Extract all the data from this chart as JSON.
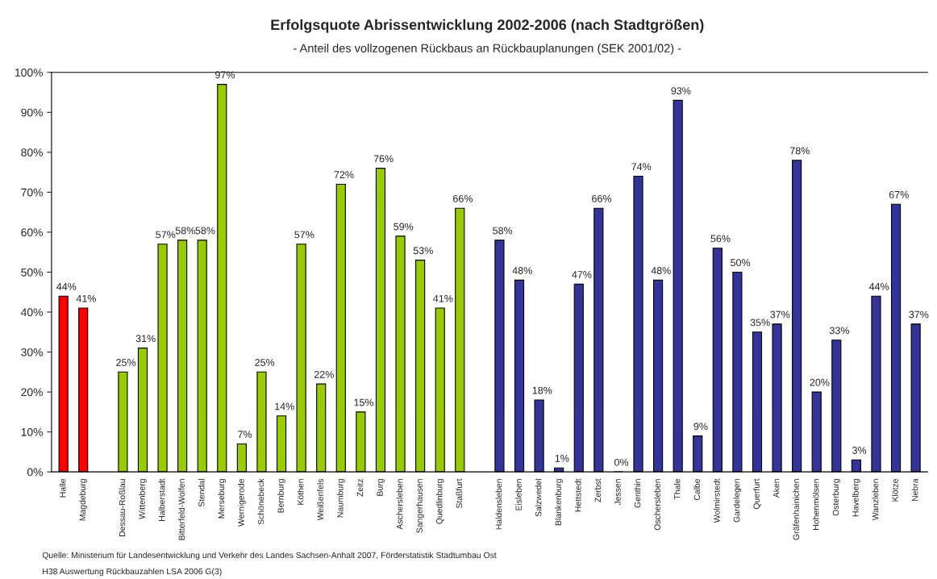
{
  "chart_data": {
    "type": "bar",
    "title": "Erfolgsquote Abrissentwicklung 2002-2006 (nach Stadtgrößen)",
    "subtitle": "- Anteil des vollzogenen Rückbaus an Rückbauplanungen (SEK 2001/02) -",
    "categories": [
      "Halle",
      "Magdeburg",
      null,
      "Dessau-Roßlau",
      "Wittenberg",
      "Halberstadt",
      "Bitterfeld-Wolfen",
      "Stendal",
      "Merseburg",
      "Wernigerode",
      "Schönebeck",
      "Bernburg",
      "Köthen",
      "Weißenfels",
      "Naumburg",
      "Zeitz",
      "Burg",
      "Aschersleben",
      "Sangerhausen",
      "Quedlinburg",
      "Staßfurt",
      null,
      "Haldensleben",
      "Eisleben",
      "Salzwedel",
      "Blankenburg",
      "Hettstedt",
      "Zerbst",
      "Jessen",
      "Genthin",
      "Oschersleben",
      "Thale",
      "Calbe",
      "Wolmirstedt",
      "Gardelegen",
      "Querfurt",
      "Aken",
      "Gräfenhainichen",
      "Hohenmölsen",
      "Osterburg",
      "Havelberg",
      "Wanzleben",
      "Klötze",
      "Nebra"
    ],
    "series": [
      {
        "color": "#ff0000",
        "values": [
          44,
          41,
          null,
          null,
          null,
          null,
          null,
          null,
          null,
          null,
          null,
          null,
          null,
          null,
          null,
          null,
          null,
          null,
          null,
          null,
          null,
          null,
          null,
          null,
          null,
          null,
          null,
          null,
          null,
          null,
          null,
          null,
          null,
          null,
          null,
          null,
          null,
          null,
          null,
          null,
          null,
          null,
          null,
          null
        ],
        "value_labels": [
          "44%",
          "41%",
          null,
          null,
          null,
          null,
          null,
          null,
          null,
          null,
          null,
          null,
          null,
          null,
          null,
          null,
          null,
          null,
          null,
          null,
          null,
          null,
          null,
          null,
          null,
          null,
          null,
          null,
          null,
          null,
          null,
          null,
          null,
          null,
          null,
          null,
          null,
          null,
          null,
          null,
          null,
          null,
          null,
          null
        ]
      },
      {
        "color": "#99cc00",
        "values": [
          null,
          null,
          null,
          25,
          31,
          57,
          58,
          58,
          97,
          7,
          25,
          14,
          57,
          22,
          72,
          15,
          76,
          59,
          53,
          41,
          66,
          null,
          null,
          null,
          null,
          null,
          null,
          null,
          null,
          null,
          null,
          null,
          null,
          null,
          null,
          null,
          null,
          null,
          null,
          null,
          null,
          null,
          null,
          null
        ],
        "value_labels": [
          null,
          null,
          null,
          "25%",
          "31%",
          "57%",
          "58%",
          "58%",
          "97%",
          "7%",
          "25%",
          "14%",
          "57%",
          "22%",
          "72%",
          "15%",
          "76%",
          "59%",
          "53%",
          "41%",
          "66%",
          null,
          null,
          null,
          null,
          null,
          null,
          null,
          null,
          null,
          null,
          null,
          null,
          null,
          null,
          null,
          null,
          null,
          null,
          null,
          null,
          null,
          null,
          null
        ]
      },
      {
        "color": "#333399",
        "values": [
          null,
          null,
          null,
          null,
          null,
          null,
          null,
          null,
          null,
          null,
          null,
          null,
          null,
          null,
          null,
          null,
          null,
          null,
          null,
          null,
          null,
          null,
          58,
          48,
          18,
          1,
          47,
          66,
          0,
          74,
          48,
          93,
          9,
          56,
          50,
          35,
          37,
          78,
          20,
          33,
          3,
          44,
          67,
          37
        ],
        "value_labels": [
          null,
          null,
          null,
          null,
          null,
          null,
          null,
          null,
          null,
          null,
          null,
          null,
          null,
          null,
          null,
          null,
          null,
          null,
          null,
          null,
          null,
          null,
          "58%",
          "48%",
          "18%",
          "1%",
          "47%",
          "66%",
          "0%",
          "74%",
          "48%",
          "93%",
          "9%",
          "56%",
          "50%",
          "35%",
          "37%",
          "78%",
          "20%",
          "33%",
          "3%",
          "44%",
          "67%",
          "37%"
        ]
      }
    ],
    "ylim": [
      0,
      100
    ],
    "yticks": [
      {
        "value": 0,
        "label": "0%"
      },
      {
        "value": 10,
        "label": "10%"
      },
      {
        "value": 20,
        "label": "20%"
      },
      {
        "value": 30,
        "label": "30%"
      },
      {
        "value": 40,
        "label": "40%"
      },
      {
        "value": 50,
        "label": "50%"
      },
      {
        "value": 60,
        "label": "60%"
      },
      {
        "value": 70,
        "label": "70%"
      },
      {
        "value": 80,
        "label": "80%"
      },
      {
        "value": 90,
        "label": "90%"
      },
      {
        "value": 100,
        "label": "100%"
      }
    ],
    "grid": false,
    "legend": false,
    "annotations": [
      "Quelle: Ministerium für Landesentwicklung und Verkehr des Landes Sachsen-Anhalt 2007, Förderstatistik Stadtumbau Ost",
      "H38 Auswertung Rückbauzahlen LSA 2006 G(3)"
    ]
  }
}
